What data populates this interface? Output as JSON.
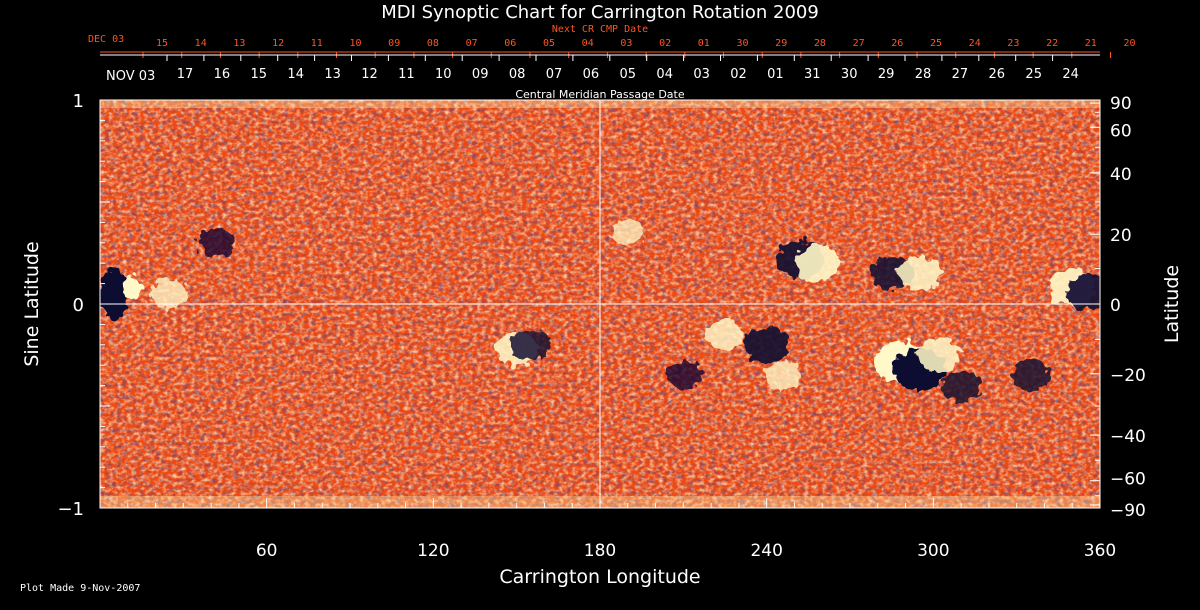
{
  "chart_data": {
    "type": "heatmap",
    "title": "MDI Synoptic Chart for Carrington Rotation 2009",
    "xlabel": "Carrington Longitude",
    "ylabel_left": "Sine Latitude",
    "ylabel_right": "Latitude",
    "xlim": [
      0,
      360
    ],
    "ylim_sine": [
      -1,
      1
    ],
    "x_ticks": [
      {
        "value": 60,
        "label": "60"
      },
      {
        "value": 120,
        "label": "120"
      },
      {
        "value": 180,
        "label": "180"
      },
      {
        "value": 240,
        "label": "240"
      },
      {
        "value": 300,
        "label": "300"
      },
      {
        "value": 360,
        "label": "360"
      }
    ],
    "y_left_ticks": [
      {
        "value": 1,
        "label": "1"
      },
      {
        "value": 0,
        "label": "0"
      },
      {
        "value": -1,
        "label": "−1"
      }
    ],
    "y_right_ticks": [
      {
        "value": 90,
        "label": "90"
      },
      {
        "value": 60,
        "label": "60"
      },
      {
        "value": 40,
        "label": "40"
      },
      {
        "value": 20,
        "label": "20"
      },
      {
        "value": 0,
        "label": "0"
      },
      {
        "value": -20,
        "label": "−20"
      },
      {
        "value": -40,
        "label": "−40"
      },
      {
        "value": -60,
        "label": "−60"
      },
      {
        "value": -90,
        "label": "−90"
      }
    ],
    "top_axis_1": {
      "label": "Next CR CMP Date",
      "month_label": "DEC 03",
      "ticks": [
        "15",
        "14",
        "13",
        "12",
        "11",
        "10",
        "09",
        "08",
        "07",
        "06",
        "05",
        "04",
        "03",
        "02",
        "01",
        "30",
        "29",
        "28",
        "27",
        "26",
        "25",
        "24",
        "23",
        "22",
        "21",
        "20"
      ]
    },
    "top_axis_2": {
      "label": "Central Meridian Passage Date",
      "month_label": "NOV 03",
      "ticks": [
        "17",
        "16",
        "15",
        "14",
        "13",
        "12",
        "11",
        "10",
        "09",
        "08",
        "07",
        "06",
        "05",
        "04",
        "03",
        "02",
        "01",
        "31",
        "30",
        "29",
        "28",
        "27",
        "26",
        "25",
        "24"
      ]
    },
    "guides": {
      "equator_line": true,
      "meridian_180_line": true
    },
    "colors": {
      "background": "#000000",
      "field_base": "#ee4a12",
      "positive": "#fff8c8",
      "negative": "#0c0830",
      "top_axis_1_color": "#ff5522",
      "text": "#ffffff"
    },
    "active_regions": [
      {
        "lon": 5,
        "sinlat": 0.05,
        "polarity": "mixed",
        "strength": 0.9
      },
      {
        "lon": 25,
        "sinlat": 0.05,
        "polarity": "positive",
        "strength": 0.5
      },
      {
        "lon": 42,
        "sinlat": 0.3,
        "polarity": "negative",
        "strength": 0.5
      },
      {
        "lon": 150,
        "sinlat": -0.22,
        "polarity": "positive",
        "strength": 0.7
      },
      {
        "lon": 155,
        "sinlat": -0.2,
        "polarity": "negative",
        "strength": 0.6
      },
      {
        "lon": 190,
        "sinlat": 0.35,
        "polarity": "positive",
        "strength": 0.4
      },
      {
        "lon": 225,
        "sinlat": -0.15,
        "polarity": "positive",
        "strength": 0.6
      },
      {
        "lon": 240,
        "sinlat": -0.2,
        "polarity": "negative",
        "strength": 0.8
      },
      {
        "lon": 246,
        "sinlat": -0.35,
        "polarity": "positive",
        "strength": 0.5
      },
      {
        "lon": 252,
        "sinlat": 0.22,
        "polarity": "negative",
        "strength": 0.8
      },
      {
        "lon": 258,
        "sinlat": 0.2,
        "polarity": "positive",
        "strength": 0.8
      },
      {
        "lon": 285,
        "sinlat": 0.15,
        "polarity": "negative",
        "strength": 0.7
      },
      {
        "lon": 295,
        "sinlat": 0.15,
        "polarity": "positive",
        "strength": 0.7
      },
      {
        "lon": 288,
        "sinlat": -0.28,
        "polarity": "positive",
        "strength": 1.0
      },
      {
        "lon": 295,
        "sinlat": -0.32,
        "polarity": "negative",
        "strength": 1.0
      },
      {
        "lon": 302,
        "sinlat": -0.25,
        "polarity": "positive",
        "strength": 0.7
      },
      {
        "lon": 310,
        "sinlat": -0.4,
        "polarity": "negative",
        "strength": 0.6
      },
      {
        "lon": 335,
        "sinlat": -0.35,
        "polarity": "negative",
        "strength": 0.6
      },
      {
        "lon": 350,
        "sinlat": 0.08,
        "polarity": "positive",
        "strength": 0.8
      },
      {
        "lon": 356,
        "sinlat": 0.06,
        "polarity": "negative",
        "strength": 0.8
      },
      {
        "lon": 210,
        "sinlat": -0.35,
        "polarity": "negative",
        "strength": 0.5
      }
    ]
  },
  "footer": {
    "plot_made": "Plot Made  9-Nov-2007"
  }
}
